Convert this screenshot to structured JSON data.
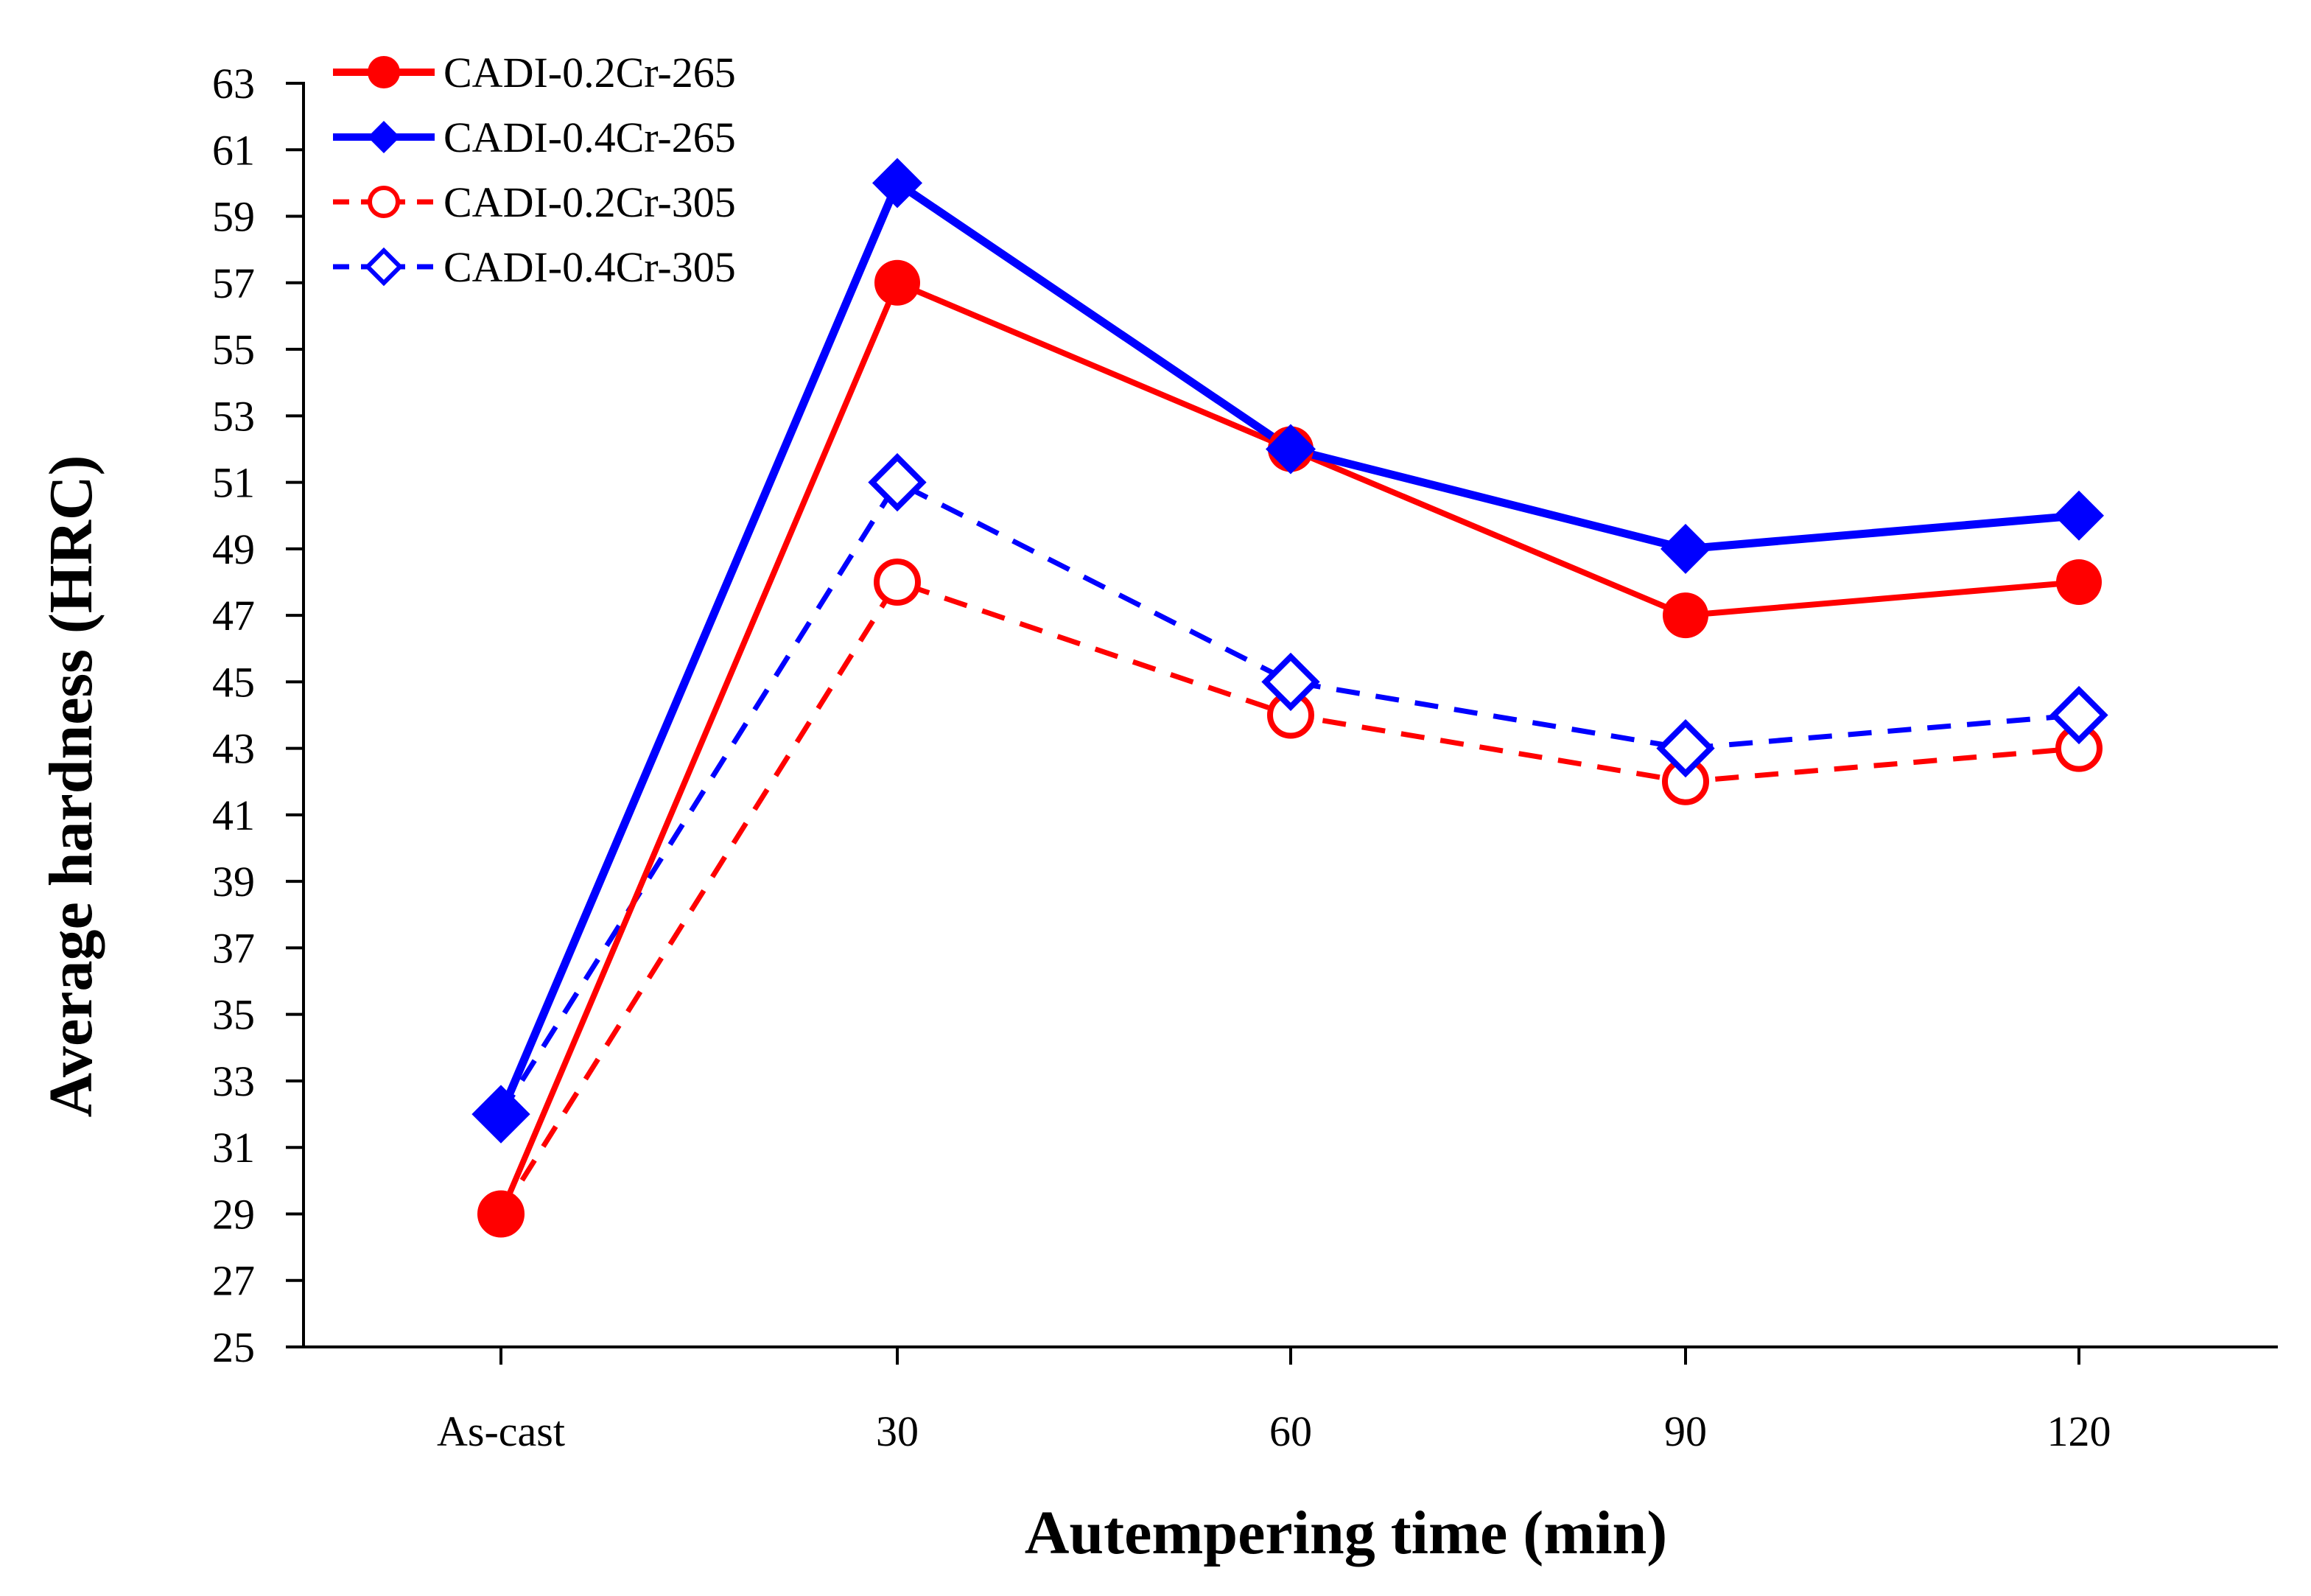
{
  "chart_data": {
    "type": "line",
    "title": "",
    "xlabel": "Autempering time (min)",
    "ylabel": "Average hardness (HRC)",
    "categories": [
      "As-cast",
      "30",
      "60",
      "90",
      "120"
    ],
    "ylim": [
      25,
      63
    ],
    "yticks": [
      25,
      27,
      29,
      31,
      33,
      35,
      37,
      39,
      41,
      43,
      45,
      47,
      49,
      51,
      53,
      55,
      57,
      59,
      61,
      63
    ],
    "grid": false,
    "legend_position": "top-left",
    "series": [
      {
        "name": "CADI-0.2Cr-265",
        "values": [
          29,
          57,
          52,
          47,
          48
        ],
        "color": "#ff0000",
        "line": "solid",
        "marker": "circle",
        "filled": true
      },
      {
        "name": "CADI-0.4Cr-265",
        "values": [
          32,
          60,
          52,
          49,
          50
        ],
        "color": "#0000ff",
        "line": "solid",
        "marker": "diamond",
        "filled": true
      },
      {
        "name": "CADI-0.2Cr-305",
        "values": [
          29,
          48,
          44,
          42,
          43
        ],
        "color": "#ff0000",
        "line": "dashed",
        "marker": "circle",
        "filled": false
      },
      {
        "name": "CADI-0.4Cr-305",
        "values": [
          32,
          51,
          45,
          43,
          44
        ],
        "color": "#0000ff",
        "line": "dashed",
        "marker": "diamond",
        "filled": false
      }
    ]
  }
}
